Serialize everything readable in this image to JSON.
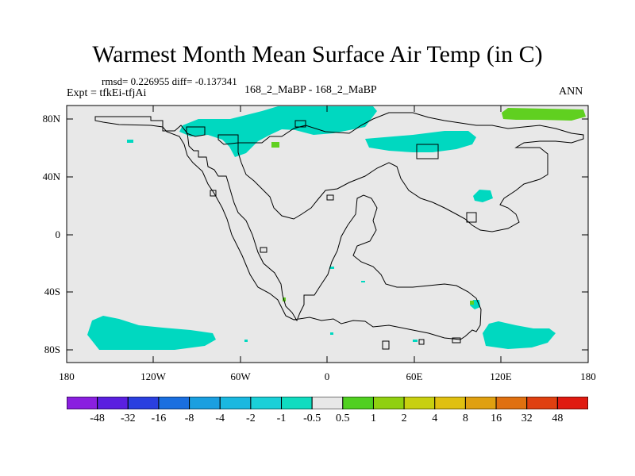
{
  "title": "Warmest Month Mean Surface Air Temp (in C)",
  "stats_line": "rmsd= 0.226955 diff= -0.137341",
  "expt_line": "Expt = tfkEi-tfjAi",
  "center_label": "168_2_MaBP - 168_2_MaBP",
  "season_label": "ANN",
  "map": {
    "background_color": "#e8e8e8",
    "y_ticks": [
      "80N",
      "40N",
      "0",
      "40S",
      "80S"
    ],
    "x_ticks": [
      "180",
      "120W",
      "60W",
      "0",
      "60E",
      "120E",
      "180"
    ]
  },
  "colorbar": {
    "colors": [
      "#8a1fe0",
      "#5a1fe0",
      "#2a3fe0",
      "#1a6fe0",
      "#1a9fe0",
      "#1ab8e0",
      "#1ad0d8",
      "#10dcc0",
      "#e8e8e8",
      "#50d020",
      "#90d010",
      "#c8d010",
      "#e0c010",
      "#e0a010",
      "#e07010",
      "#e04010",
      "#e01a10"
    ],
    "labels": [
      "-48",
      "-32",
      "-16",
      "-8",
      "-4",
      "-2",
      "-1",
      "-0.5",
      "0.5",
      "1",
      "2",
      "4",
      "8",
      "16",
      "32",
      "48"
    ]
  },
  "colors": {
    "cool_anomaly": "#00d8c0",
    "warm_anomaly": "#60d020",
    "coastline": "#000000"
  }
}
